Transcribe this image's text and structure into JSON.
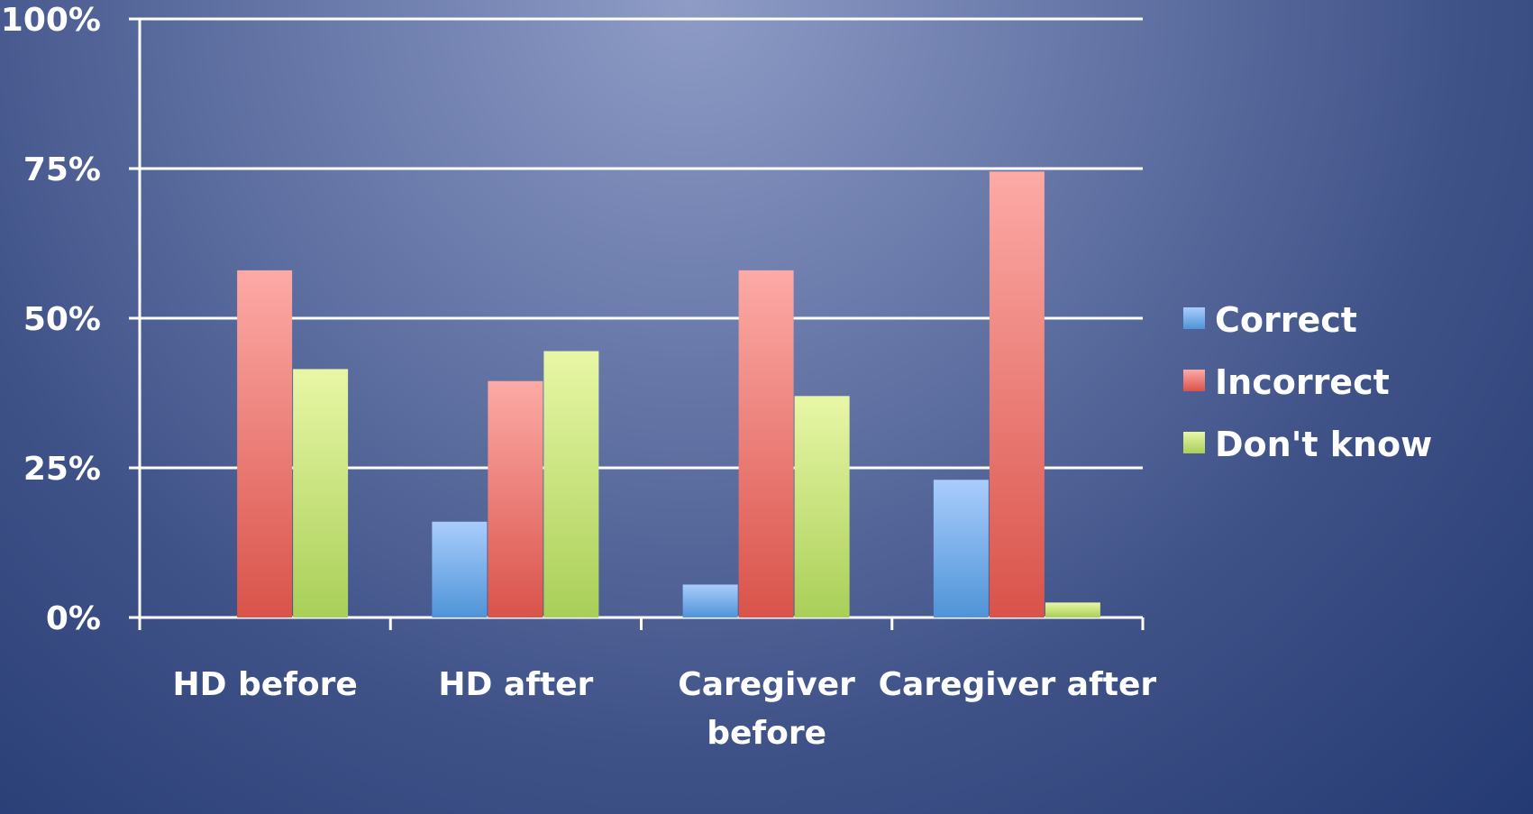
{
  "chart_data": {
    "type": "bar",
    "title": "",
    "xlabel": "",
    "ylabel": "",
    "categories": [
      "HD before",
      "HD after",
      "Caregiver\nbefore",
      "Caregiver after"
    ],
    "ylim": [
      0,
      100
    ],
    "yticks": [
      "0%",
      "25%",
      "50%",
      "75%",
      "100%"
    ],
    "ytick_values": [
      0,
      25,
      50,
      75,
      100
    ],
    "grid": true,
    "legend_position": "right",
    "series": [
      {
        "name": "Correct",
        "values": [
          0,
          16,
          5.5,
          23
        ],
        "color_top": "#a9cdfc",
        "color_bottom": "#4f94d8"
      },
      {
        "name": "Incorrect",
        "values": [
          58,
          39.5,
          58,
          74.5
        ],
        "color_top": "#fdaaa6",
        "color_bottom": "#d9534a"
      },
      {
        "name": "Don't know",
        "values": [
          41.5,
          44.5,
          37,
          2.5
        ],
        "color_top": "#e8f7a6",
        "color_bottom": "#a9cf58"
      }
    ]
  }
}
